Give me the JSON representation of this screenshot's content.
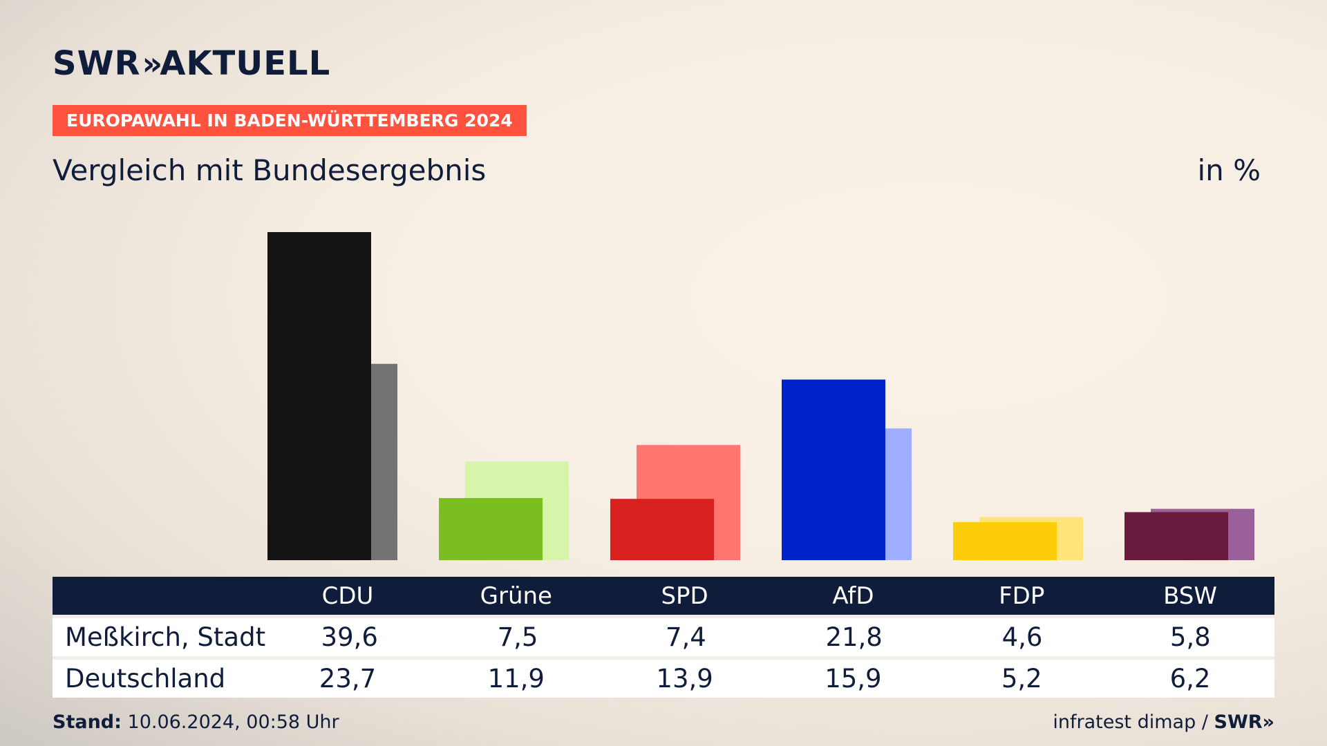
{
  "header": {
    "logo_text": "SWR",
    "logo_chevrons": "»",
    "logo_suffix": "AKTUELL",
    "badge": "EUROPAWAHL IN BADEN-WÜRTTEMBERG 2024",
    "subtitle": "Vergleich mit Bundesergebnis",
    "unit": "in %"
  },
  "chart_data": {
    "type": "bar",
    "categories": [
      "CDU",
      "Grüne",
      "SPD",
      "AfD",
      "FDP",
      "BSW"
    ],
    "series": [
      {
        "name": "Meßkirch, Stadt",
        "values": [
          39.6,
          7.5,
          7.4,
          21.8,
          4.6,
          5.8
        ],
        "colors": [
          "#141414",
          "#7abf1f",
          "#d8201f",
          "#0022c9",
          "#fdcc0a",
          "#6a1a3d"
        ]
      },
      {
        "name": "Deutschland",
        "values": [
          23.7,
          11.9,
          13.9,
          15.9,
          5.2,
          6.2
        ],
        "colors": [
          "#737373",
          "#d6f5ab",
          "#ff766f",
          "#a0aeff",
          "#ffe47a",
          "#9a6099"
        ]
      }
    ],
    "ylim": [
      0,
      39.6
    ],
    "legend": "table-below"
  },
  "table": {
    "headers": [
      "CDU",
      "Grüne",
      "SPD",
      "AfD",
      "FDP",
      "BSW"
    ],
    "rows": [
      {
        "label": "Meßkirch, Stadt",
        "values": [
          "39,6",
          "7,5",
          "7,4",
          "21,8",
          "4,6",
          "5,8"
        ]
      },
      {
        "label": "Deutschland",
        "values": [
          "23,7",
          "11,9",
          "13,9",
          "15,9",
          "5,2",
          "6,2"
        ]
      }
    ]
  },
  "footer": {
    "stand_label": "Stand:",
    "stand_value": "10.06.2024, 00:58 Uhr",
    "source": "infratest dimap",
    "separator": "/",
    "source_brand": "SWR»"
  }
}
